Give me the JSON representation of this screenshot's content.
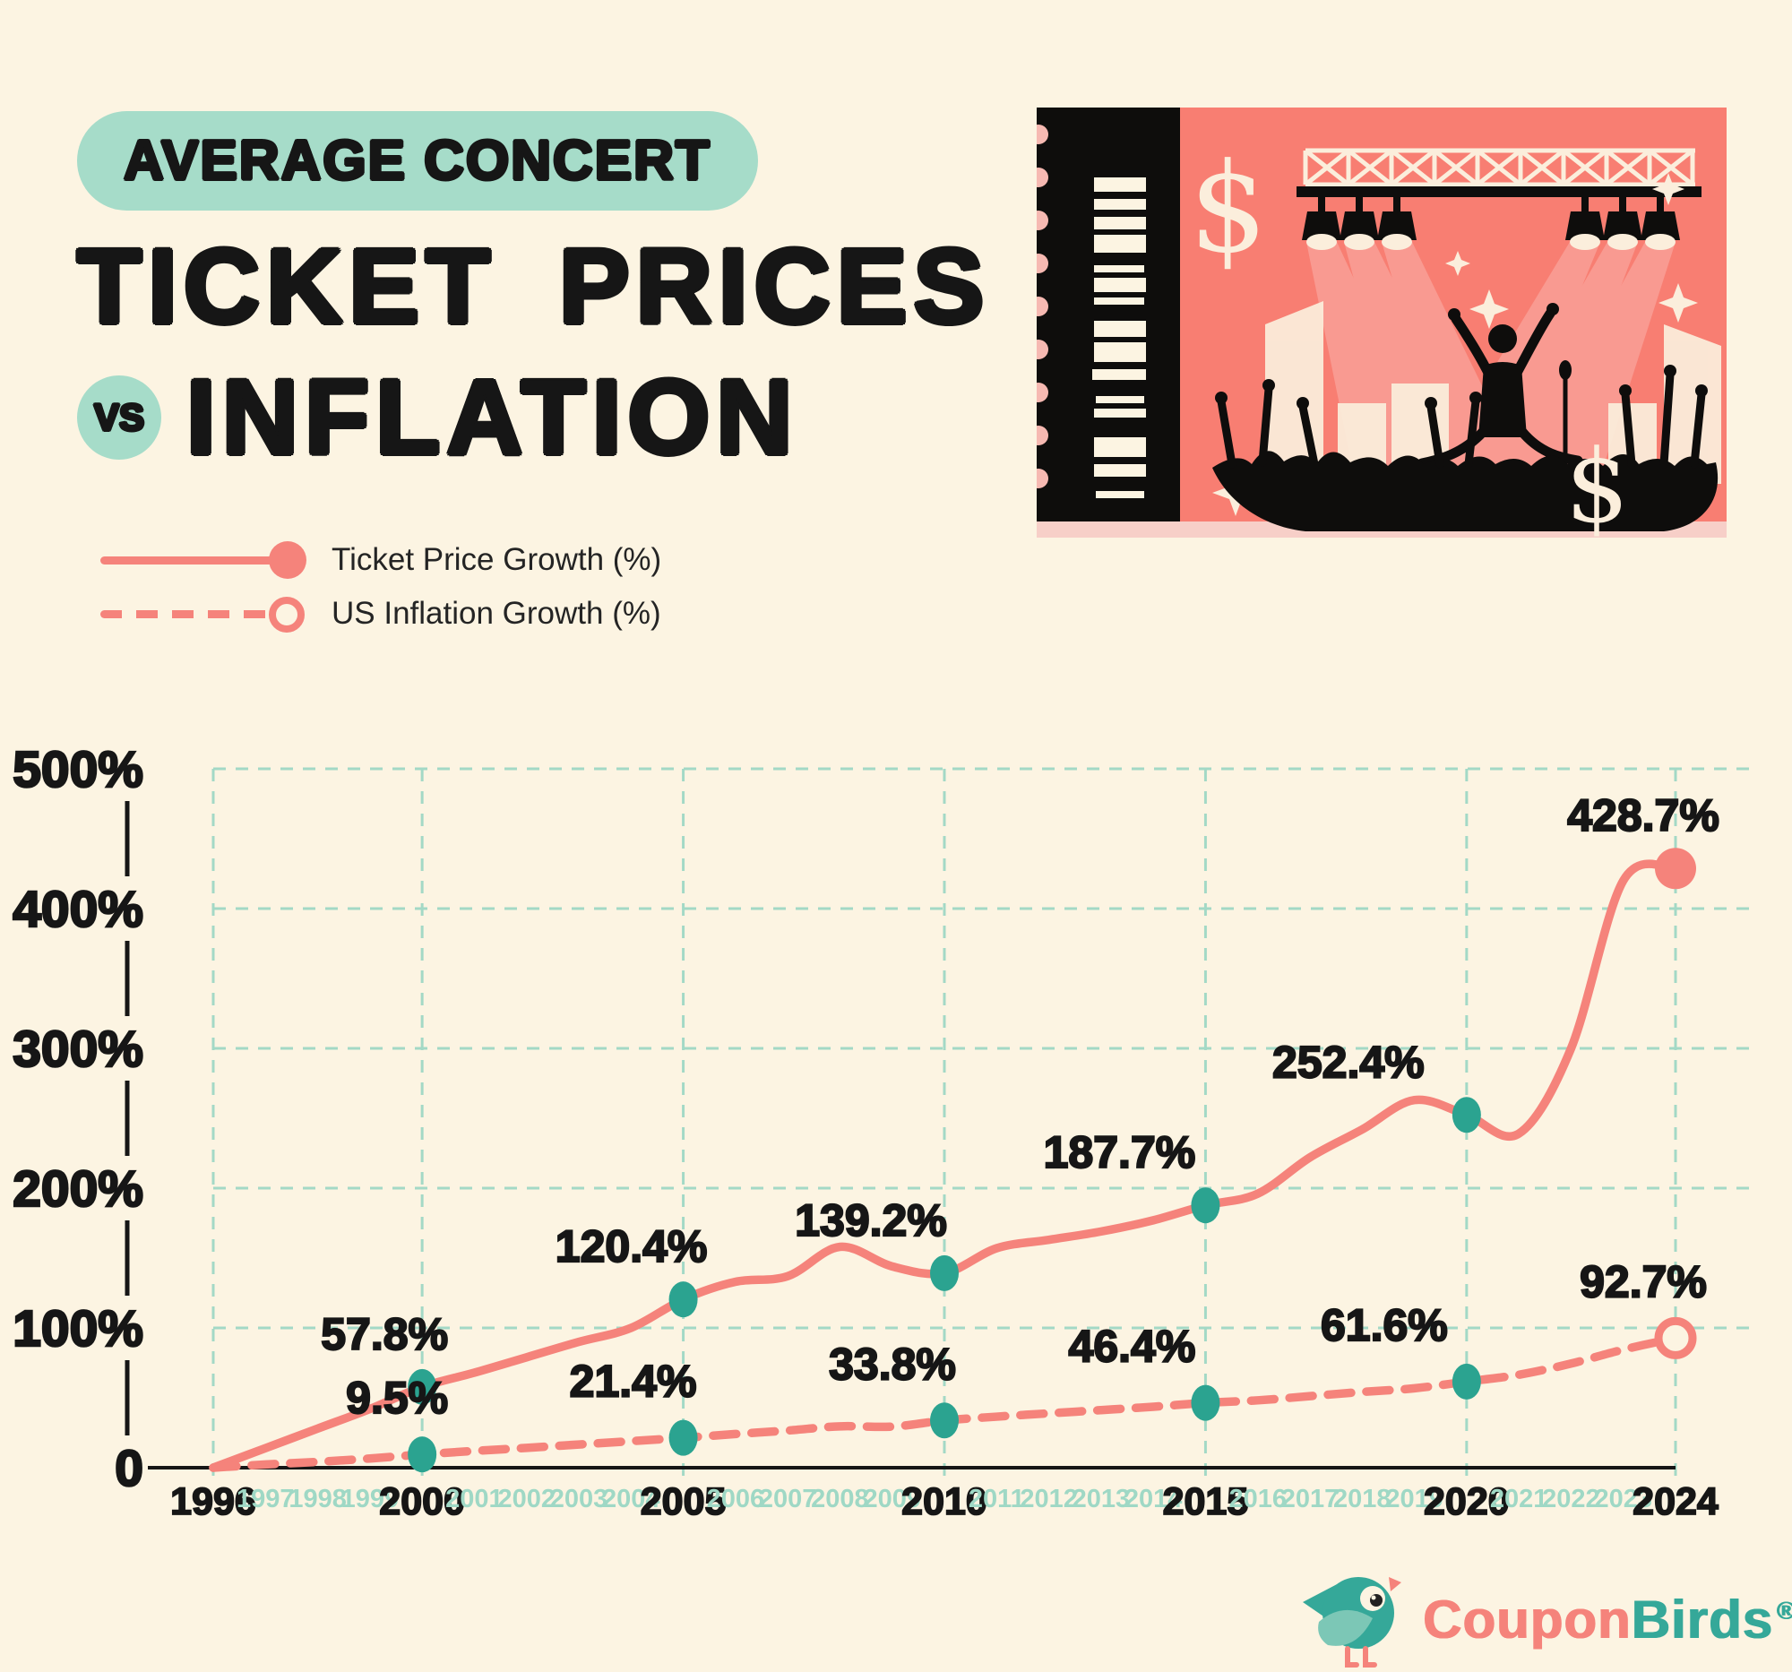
{
  "header": {
    "badge": "AVERAGE CONCERT",
    "title_line1": "TICKET PRICES",
    "vs": "VS",
    "title_line2": "INFLATION"
  },
  "legend": {
    "items": [
      {
        "label": "Ticket Price Growth (%)",
        "style": "solid"
      },
      {
        "label": "US Inflation Growth (%)",
        "style": "dashed"
      }
    ]
  },
  "art": {
    "dollar": "$"
  },
  "footer": {
    "brand_coupon": "Coupon",
    "brand_birds": "Birds",
    "registered": "®"
  },
  "colors": {
    "background": "#FCF4E2",
    "salmon": "#F5837B",
    "ticket_salmon": "#F87E72",
    "mint": "#A6DCC9",
    "grid_mint": "#A3D9C6",
    "minor_year": "#9FD8C5",
    "marker_teal": "#2BA390",
    "black": "#161616",
    "cream": "#FBEEDC"
  },
  "chart_data": {
    "type": "line",
    "title": "Average Concert Ticket Prices vs Inflation",
    "x_start": 1996,
    "x_end": 2024,
    "bold_years": [
      1996,
      2000,
      2005,
      2010,
      2015,
      2020,
      2024
    ],
    "ylim": [
      0,
      500
    ],
    "grid": true,
    "y_ticks": [
      {
        "v": 0,
        "label": "0"
      },
      {
        "v": 100,
        "label": "100%"
      },
      {
        "v": 200,
        "label": "200%"
      },
      {
        "v": 300,
        "label": "300%"
      },
      {
        "v": 400,
        "label": "400%"
      },
      {
        "v": 500,
        "label": "500%"
      }
    ],
    "series": [
      {
        "name": "Ticket Price Growth (%)",
        "style": "solid",
        "values": [
          0,
          14,
          28,
          42,
          57.8,
          68,
          79,
          90,
          100,
          120.4,
          133,
          137,
          158,
          144,
          139.2,
          157,
          163,
          169,
          177,
          187.7,
          196,
          222,
          242,
          263,
          252.4,
          239,
          300,
          420,
          428.7
        ],
        "labeled_points": [
          {
            "year": 2000,
            "label": "57.8%"
          },
          {
            "year": 2005,
            "label": "120.4%"
          },
          {
            "year": 2010,
            "label": "139.2%"
          },
          {
            "year": 2015,
            "label": "187.7%"
          },
          {
            "year": 2020,
            "label": "252.4%"
          },
          {
            "year": 2024,
            "label": "428.7%"
          }
        ]
      },
      {
        "name": "US Inflation Growth (%)",
        "style": "dashed",
        "values": [
          0,
          2.3,
          4.2,
          6.6,
          9.5,
          12,
          14.2,
          16.6,
          19,
          21.4,
          24.1,
          26.6,
          29.6,
          29.4,
          33.8,
          36.5,
          38.9,
          41.2,
          43.6,
          46.4,
          48.2,
          51.2,
          54.2,
          56.8,
          61.6,
          66.5,
          74.5,
          84.5,
          92.7
        ],
        "labeled_points": [
          {
            "year": 2000,
            "label": "9.5%"
          },
          {
            "year": 2005,
            "label": "21.4%"
          },
          {
            "year": 2010,
            "label": "33.8%"
          },
          {
            "year": 2015,
            "label": "46.4%"
          },
          {
            "year": 2020,
            "label": "61.6%"
          },
          {
            "year": 2024,
            "label": "92.7%"
          }
        ]
      }
    ]
  }
}
